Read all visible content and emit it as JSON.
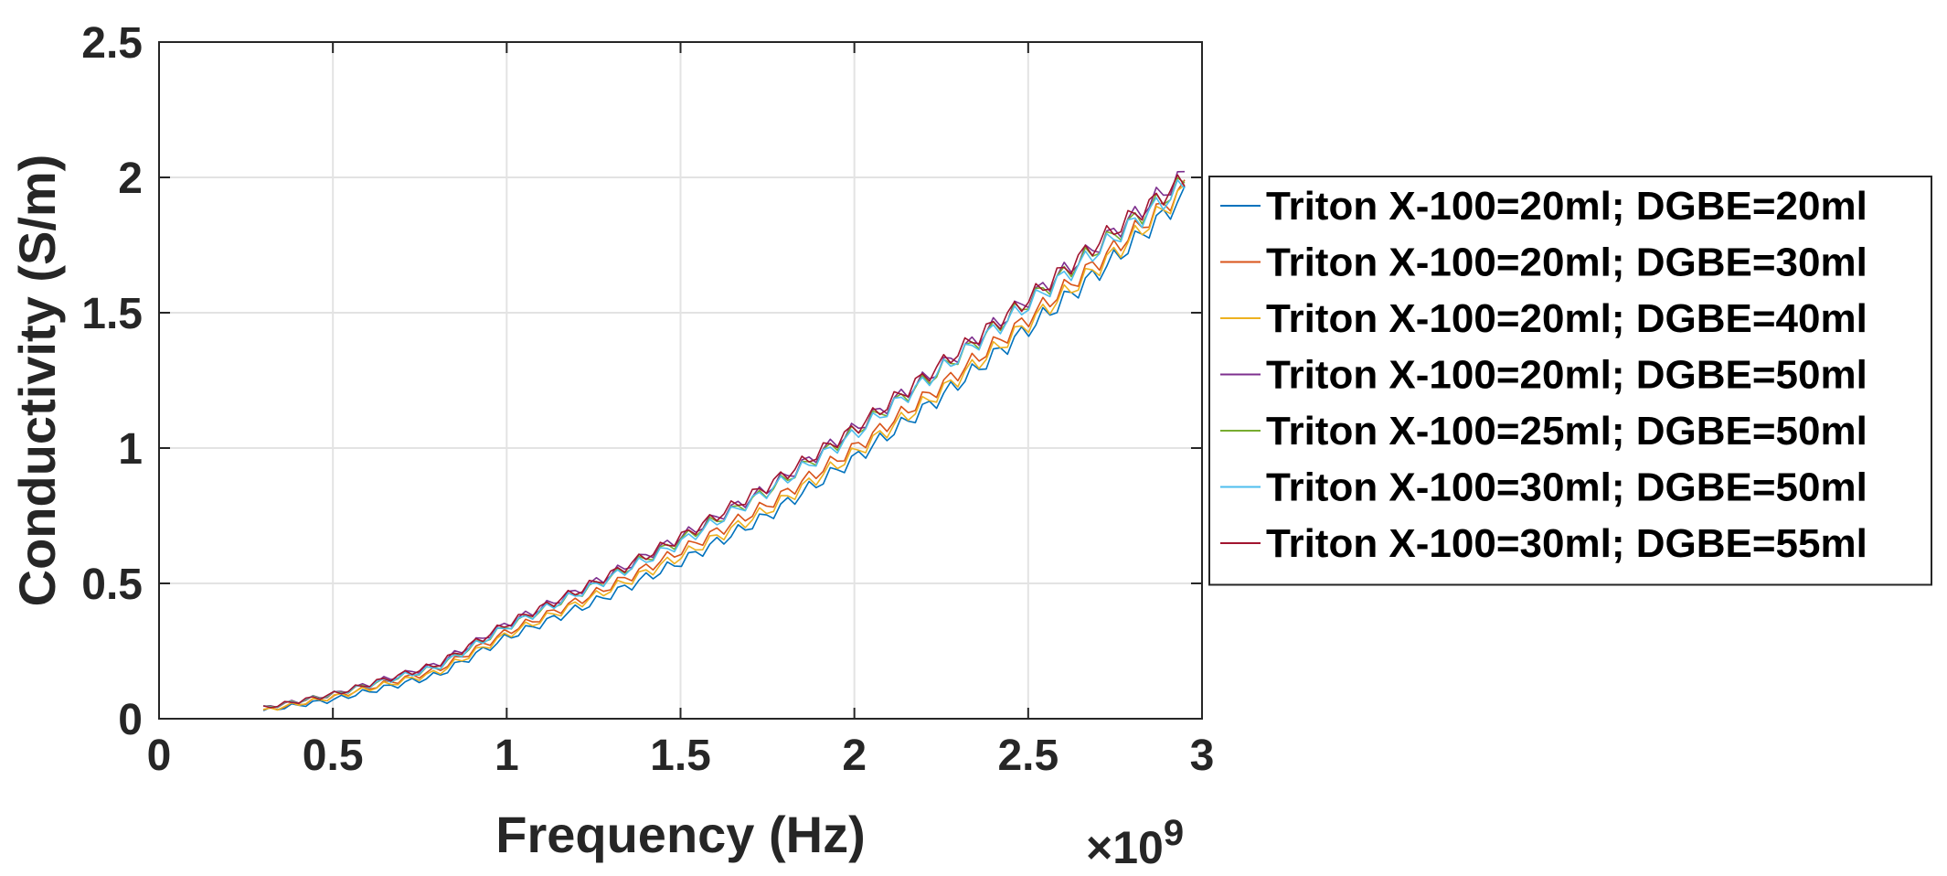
{
  "chart_data": {
    "type": "line",
    "title": "",
    "xlabel": "Frequency (Hz)",
    "ylabel": "Conductivity (S/m)",
    "x_exponent_label": "×10",
    "x_exponent_power": "9",
    "xlim": [
      0,
      3
    ],
    "ylim": [
      0,
      2.5
    ],
    "xticks": [
      0,
      0.5,
      1,
      1.5,
      2,
      2.5,
      3
    ],
    "xtick_labels": [
      "0",
      "0.5",
      "1",
      "1.5",
      "2",
      "2.5",
      "3"
    ],
    "yticks": [
      0,
      0.5,
      1,
      1.5,
      2,
      2.5
    ],
    "ytick_labels": [
      "0",
      "0.5",
      "1",
      "1.5",
      "2",
      "2.5"
    ],
    "grid": true,
    "legend_position": "outside-right",
    "x_units_note": "x values in units of 1e9 Hz",
    "x": [
      0.3,
      0.5,
      0.8,
      1.0,
      1.25,
      1.5,
      1.75,
      2.0,
      2.25,
      2.5,
      2.75,
      2.95
    ],
    "series": [
      {
        "name": "Triton X-100=20ml; DGBE=20ml",
        "color": "#0072BD",
        "values": [
          0.03,
          0.07,
          0.16,
          0.3,
          0.43,
          0.58,
          0.75,
          0.96,
          1.19,
          1.44,
          1.7,
          1.93
        ]
      },
      {
        "name": "Triton X-100=20ml; DGBE=30ml",
        "color": "#D95319",
        "values": [
          0.03,
          0.08,
          0.18,
          0.32,
          0.46,
          0.62,
          0.79,
          1.0,
          1.23,
          1.48,
          1.74,
          1.96
        ]
      },
      {
        "name": "Triton X-100=20ml; DGBE=40ml",
        "color": "#EDB120",
        "values": [
          0.03,
          0.08,
          0.17,
          0.31,
          0.45,
          0.6,
          0.77,
          0.98,
          1.21,
          1.46,
          1.72,
          1.95
        ]
      },
      {
        "name": "Triton X-100=20ml; DGBE=50ml",
        "color": "#7E2F8E",
        "values": [
          0.04,
          0.09,
          0.2,
          0.35,
          0.5,
          0.67,
          0.85,
          1.07,
          1.3,
          1.55,
          1.8,
          2.01
        ]
      },
      {
        "name": "Triton X-100=25ml; DGBE=50ml",
        "color": "#77AC30",
        "values": [
          0.04,
          0.09,
          0.19,
          0.34,
          0.49,
          0.66,
          0.84,
          1.06,
          1.29,
          1.54,
          1.79,
          1.98
        ]
      },
      {
        "name": "Triton X-100=30ml; DGBE=50ml",
        "color": "#4DBEEE",
        "values": [
          0.04,
          0.09,
          0.19,
          0.34,
          0.49,
          0.65,
          0.84,
          1.05,
          1.29,
          1.53,
          1.78,
          1.97
        ]
      },
      {
        "name": "Triton X-100=30ml; DGBE=55ml",
        "color": "#A2142F",
        "values": [
          0.04,
          0.09,
          0.2,
          0.35,
          0.5,
          0.67,
          0.86,
          1.07,
          1.31,
          1.55,
          1.81,
          1.99
        ]
      }
    ]
  }
}
